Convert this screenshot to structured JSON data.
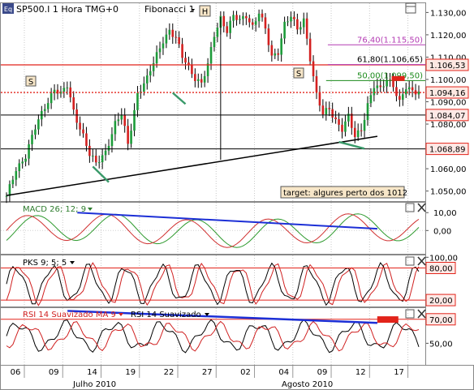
{
  "chart_data": {
    "type": "line",
    "instrument": "SP500.I",
    "timeframe": "1 Hora",
    "timezone": "TMG+0",
    "fib_label": "Fibonacci 1",
    "title": "SP500.I 1 Hora TMG+0",
    "badges": {
      "h": "H",
      "s": "S",
      "eq": "Eq"
    },
    "price_ticks": [
      "1.130,00",
      "1.120,00",
      "1.110,00",
      "1.100,00",
      "1.090,00",
      "1.080,00",
      "1.070,00",
      "1.060,00",
      "1.050,00"
    ],
    "price_tick_values": [
      1130,
      1120,
      1110,
      1100,
      1090,
      1080,
      1070,
      1060,
      1050
    ],
    "ylim": [
      1045.5,
      1134.5
    ],
    "x_ticks": [
      "06",
      "09",
      "14",
      "19",
      "22",
      "27",
      "02",
      "04",
      "09",
      "12",
      "17"
    ],
    "x_tick_index": [
      0,
      12,
      24,
      36,
      48,
      60,
      72,
      84,
      96,
      108,
      120
    ],
    "month_labels": [
      {
        "label": "Julho 2010",
        "index": 36
      },
      {
        "label": "Agosto 2010",
        "index": 111
      }
    ],
    "bars_count": 130,
    "fib_levels": [
      {
        "label": "76,40(1.115,50)",
        "value": 1115.5
      },
      {
        "label": "61,80(1.106,65)",
        "value": 1106.65
      },
      {
        "label": "50,00(1.099,50)",
        "value": 1099.5
      }
    ],
    "horizontal_lines": [
      {
        "label": "1.106,53",
        "value": 1106.53,
        "style": "solid-red"
      },
      {
        "label": "1.094,16",
        "value": 1094.16,
        "style": "dotted-red"
      },
      {
        "label": "1.084,07",
        "value": 1084.07,
        "style": "solid-black"
      },
      {
        "label": "1.068,89",
        "value": 1068.89,
        "style": "solid-black"
      }
    ],
    "trendline": {
      "from": {
        "index": 0,
        "value": 1048
      },
      "to": {
        "index": 130,
        "value": 1074.5
      }
    },
    "annotation": "target: algures perto dos 1012",
    "price_anchors": [
      [
        0,
        1047
      ],
      [
        3,
        1060
      ],
      [
        6,
        1066
      ],
      [
        9,
        1078
      ],
      [
        12,
        1088
      ],
      [
        15,
        1096
      ],
      [
        17,
        1093
      ],
      [
        19,
        1097
      ],
      [
        21,
        1086
      ],
      [
        24,
        1075
      ],
      [
        26,
        1066
      ],
      [
        28,
        1062
      ],
      [
        31,
        1068
      ],
      [
        34,
        1080
      ],
      [
        36,
        1084
      ],
      [
        38,
        1071
      ],
      [
        41,
        1094
      ],
      [
        44,
        1100
      ],
      [
        47,
        1111
      ],
      [
        49,
        1118
      ],
      [
        51,
        1122
      ],
      [
        53,
        1118
      ],
      [
        55,
        1110
      ],
      [
        57,
        1106
      ],
      [
        59,
        1101
      ],
      [
        61,
        1098
      ],
      [
        63,
        1106
      ],
      [
        65,
        1120
      ],
      [
        67,
        1128
      ],
      [
        69,
        1122
      ],
      [
        71,
        1128
      ],
      [
        73,
        1126
      ],
      [
        75,
        1129
      ],
      [
        77,
        1124
      ],
      [
        79,
        1130
      ],
      [
        81,
        1122
      ],
      [
        83,
        1110
      ],
      [
        85,
        1113
      ],
      [
        87,
        1125
      ],
      [
        89,
        1128
      ],
      [
        91,
        1122
      ],
      [
        93,
        1127
      ],
      [
        95,
        1110
      ],
      [
        97,
        1093
      ],
      [
        99,
        1084
      ],
      [
        101,
        1087
      ],
      [
        103,
        1082
      ],
      [
        105,
        1078
      ],
      [
        107,
        1083
      ],
      [
        109,
        1074
      ],
      [
        111,
        1078
      ],
      [
        113,
        1089
      ],
      [
        115,
        1097
      ],
      [
        117,
        1095
      ],
      [
        119,
        1100
      ],
      [
        121,
        1098
      ],
      [
        123,
        1090
      ],
      [
        125,
        1096
      ],
      [
        127,
        1094
      ],
      [
        129,
        1095
      ]
    ],
    "macd": {
      "label": "MACD 26; 12; 9",
      "ticks": [
        "10,00",
        "0,00"
      ],
      "tick_values": [
        10,
        0
      ],
      "ylim": [
        -13,
        16
      ],
      "trendline": {
        "from": {
          "index": 12,
          "value": 10
        },
        "to": {
          "index": 130,
          "value": 1
        }
      }
    },
    "pks": {
      "label": "PKS 9; 5; 5",
      "ticks": [
        "100,00",
        "80,00",
        "20,00"
      ],
      "tick_values": [
        100,
        80,
        20
      ],
      "ylim": [
        8,
        105
      ],
      "levels": [
        80,
        20
      ]
    },
    "rsi": {
      "label_ma": "RSI 14 Suavizado MA 9",
      "label": "RSI 14 Suavizado",
      "ticks": [
        "70,00",
        "50,00"
      ],
      "tick_values": [
        70,
        50
      ],
      "ylim": [
        32,
        80
      ],
      "level": 70,
      "trendline": {
        "from": {
          "index": 14,
          "value": 77
        },
        "to": {
          "index": 130,
          "value": 67
        }
      }
    },
    "colors": {
      "price": "#000000",
      "red": "#e2231a",
      "fib": "#b33bb3",
      "fib50": "#1a8a1a",
      "trend_blue": "#1c2fd6",
      "macd_main": "#d03030",
      "macd_signal": "#2e9a2e",
      "green_line": "#3a9a6a"
    }
  }
}
